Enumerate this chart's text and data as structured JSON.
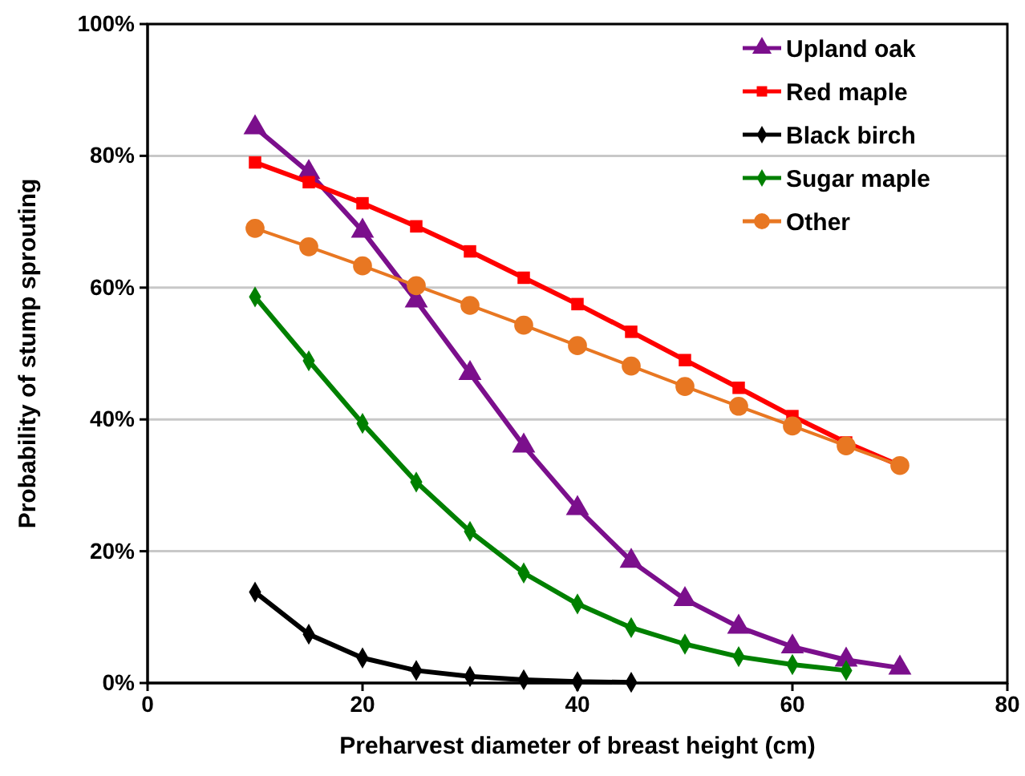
{
  "chart_data": {
    "type": "line",
    "xlabel": "Preharvest diameter of breast height (cm)",
    "ylabel": "Probability of stump sprouting",
    "xlim": [
      0,
      80
    ],
    "xticks": [
      0,
      20,
      40,
      60,
      80
    ],
    "ylim": [
      0,
      100
    ],
    "yticks": [
      {
        "value": 0,
        "label": "0%"
      },
      {
        "value": 20,
        "label": "20%"
      },
      {
        "value": 40,
        "label": "40%"
      },
      {
        "value": 60,
        "label": "60%"
      },
      {
        "value": 80,
        "label": "80%"
      },
      {
        "value": 100,
        "label": "100%"
      }
    ],
    "grid": "y",
    "legend": "top right",
    "series": [
      {
        "name": "Upland oak",
        "color": "#7b0f8c",
        "marker": "triangle",
        "x": [
          10,
          15,
          20,
          25,
          30,
          35,
          40,
          45,
          50,
          55,
          60,
          65,
          70
        ],
        "values": [
          84.3,
          77.5,
          68.6,
          58,
          47,
          36,
          26.5,
          18.5,
          12.7,
          8.5,
          5.5,
          3.5,
          2.3
        ]
      },
      {
        "name": "Red maple",
        "color": "#ff0000",
        "marker": "square",
        "x": [
          10,
          15,
          20,
          25,
          30,
          35,
          40,
          45,
          50,
          55,
          60,
          65,
          70
        ],
        "values": [
          79,
          76,
          72.8,
          69.3,
          65.5,
          61.5,
          57.5,
          53.3,
          49,
          44.8,
          40.5,
          36.5,
          33
        ]
      },
      {
        "name": "Black birch",
        "color": "#000000",
        "marker": "diamond",
        "x": [
          10,
          15,
          20,
          25,
          30,
          35,
          40,
          45
        ],
        "values": [
          13.8,
          7.4,
          3.8,
          1.9,
          1,
          0.5,
          0.2,
          0.1
        ]
      },
      {
        "name": "Sugar maple",
        "color": "#008000",
        "marker": "diamond",
        "x": [
          10,
          15,
          20,
          25,
          30,
          35,
          40,
          45,
          50,
          55,
          60,
          65
        ],
        "values": [
          58.6,
          48.9,
          39.4,
          30.5,
          23,
          16.7,
          12,
          8.4,
          5.9,
          4,
          2.8,
          1.9
        ]
      },
      {
        "name": "Other",
        "color": "#e87722",
        "marker": "circle",
        "x": [
          10,
          15,
          20,
          25,
          30,
          35,
          40,
          45,
          50,
          55,
          60,
          65,
          70
        ],
        "values": [
          69,
          66.2,
          63.3,
          60.3,
          57.3,
          54.3,
          51.2,
          48.1,
          45,
          42,
          39,
          36,
          33
        ]
      }
    ]
  }
}
